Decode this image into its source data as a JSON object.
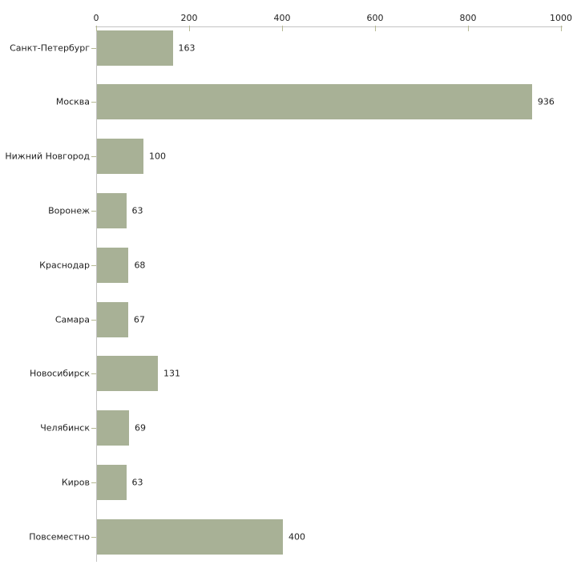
{
  "chart_data": {
    "type": "bar",
    "orientation": "horizontal",
    "title": "",
    "xlabel": "",
    "ylabel": "",
    "categories": [
      "Санкт-Петербург",
      "Москва",
      "Нижний Новгород",
      "Воронеж",
      "Краснодар",
      "Самара",
      "Новосибирск",
      "Челябинск",
      "Киров",
      "Повсеместно"
    ],
    "values": [
      163,
      936,
      100,
      63,
      68,
      67,
      131,
      69,
      63,
      400
    ],
    "value_labels": [
      "163",
      "936",
      "100",
      "63",
      "68",
      "67",
      "131",
      "69",
      "63",
      "400"
    ],
    "xlim": [
      0,
      1000
    ],
    "xticks": [
      0,
      200,
      400,
      600,
      800,
      1000
    ],
    "xtick_labels": [
      "0",
      "200",
      "400",
      "600",
      "800",
      "1000"
    ],
    "grid": false,
    "legend": null,
    "value_labels_shown": true,
    "colors": {
      "bar_fill": "#a8b196",
      "axis_line": "#c3c3c3",
      "tick_mark": "#b6b993",
      "text": "#1f1f1f"
    }
  }
}
